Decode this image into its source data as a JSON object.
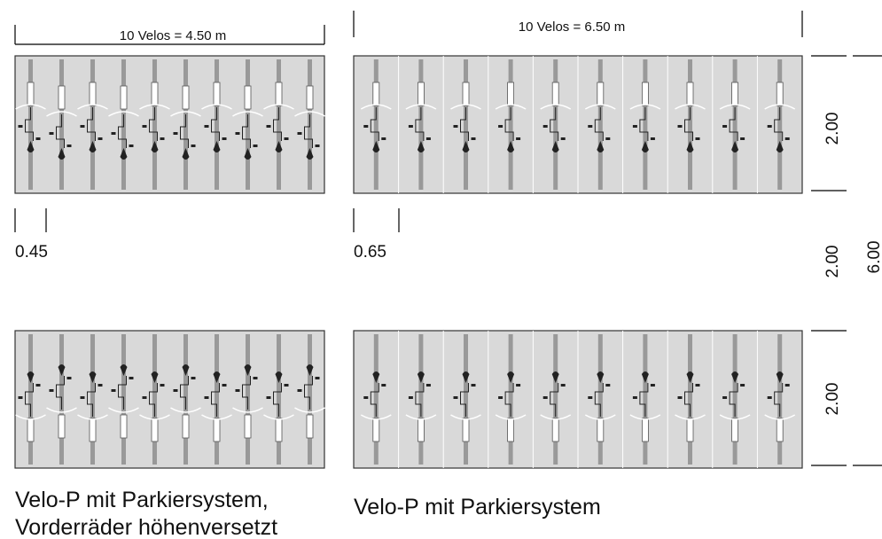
{
  "top_dimensions": [
    "10 Velos = 4.50 m",
    "10 Velos = 6.50 m"
  ],
  "spacing_dimensions": [
    "0.45",
    "0.65"
  ],
  "side_dimensions": [
    "2.00",
    "2.00",
    "6.00",
    "2.00"
  ],
  "left_caption": [
    "Velo-P mit Parkiersystem,",
    "Vorderräder höhenversetzt"
  ],
  "right_caption": "Velo-P mit Parkiersystem"
}
